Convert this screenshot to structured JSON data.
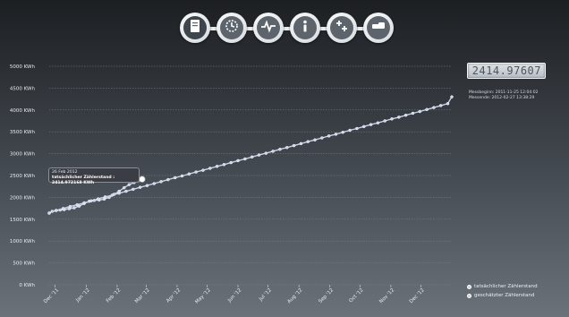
{
  "toolbar": {
    "buttons": [
      {
        "icon": "document-icon"
      },
      {
        "icon": "meter-rotate-icon"
      },
      {
        "icon": "pulse-icon"
      },
      {
        "icon": "info-icon"
      },
      {
        "icon": "sparkle-cross-icon"
      },
      {
        "icon": "device-icon"
      }
    ]
  },
  "counter": {
    "value": "2414.97607"
  },
  "meta": {
    "start": "Messbeginn: 2011-11-25 12:04:02",
    "end": "Messende: 2012-02-27 13:38:29"
  },
  "tooltip": {
    "date": "26 Feb 2012",
    "label": "tatsächlicher Zählerstand",
    "value": "2414.972168 KWh"
  },
  "legend": {
    "items": [
      "tatsächlicher Zählerstand",
      "geschätzter Zählerstand"
    ]
  },
  "colors": {
    "series": "#c9d2e8",
    "background_top": "#1c1f22",
    "background_bottom": "#6b7279"
  },
  "chart_data": {
    "type": "line",
    "title": "",
    "xlabel": "",
    "ylabel": "",
    "y_ticks": [
      "0 KWh",
      "500 KWh",
      "1000 KWh",
      "1500 KWh",
      "2000 KWh",
      "2500 KWh",
      "3000 KWh",
      "3500 KWh",
      "4000 KWh",
      "4500 KWh",
      "5000 KWh"
    ],
    "x_ticks": [
      "Dec '11",
      "Jan '12",
      "Feb '12",
      "Mar '12",
      "Apr '12",
      "May '12",
      "Jun '12",
      "Jul '12",
      "Aug '12",
      "Sep '12",
      "Oct '12",
      "Nov '12",
      "Dec '12"
    ],
    "ylim": [
      0,
      5000
    ],
    "xlim": [
      "2011-11-25",
      "2013-01-01"
    ],
    "grid": true,
    "legend_position": "bottom-right",
    "series": [
      {
        "name": "tatsächlicher Zählerstand",
        "points": [
          [
            "2011-11-25",
            1640
          ],
          [
            "2011-11-28",
            1680
          ],
          [
            "2011-12-02",
            1700
          ],
          [
            "2011-12-06",
            1710
          ],
          [
            "2011-12-10",
            1720
          ],
          [
            "2011-12-15",
            1740
          ],
          [
            "2011-12-20",
            1760
          ],
          [
            "2011-12-25",
            1800
          ],
          [
            "2011-12-30",
            1860
          ],
          [
            "2012-01-04",
            1910
          ],
          [
            "2012-01-09",
            1930
          ],
          [
            "2012-01-14",
            1940
          ],
          [
            "2012-01-19",
            1960
          ],
          [
            "2012-01-24",
            2000
          ],
          [
            "2012-01-29",
            2070
          ],
          [
            "2012-02-03",
            2140
          ],
          [
            "2012-02-08",
            2220
          ],
          [
            "2012-02-13",
            2290
          ],
          [
            "2012-02-18",
            2340
          ],
          [
            "2012-02-22",
            2380
          ],
          [
            "2012-02-26",
            2415
          ]
        ]
      },
      {
        "name": "geschätzter Zählerstand",
        "points": [
          [
            "2011-11-25",
            1640
          ],
          [
            "2011-12-02",
            1700
          ],
          [
            "2011-12-09",
            1745
          ],
          [
            "2011-12-16",
            1790
          ],
          [
            "2011-12-23",
            1830
          ],
          [
            "2011-12-30",
            1875
          ],
          [
            "2012-01-06",
            1920
          ],
          [
            "2012-01-13",
            1965
          ],
          [
            "2012-01-20",
            2010
          ],
          [
            "2012-01-27",
            2050
          ],
          [
            "2012-02-03",
            2095
          ],
          [
            "2012-02-10",
            2140
          ],
          [
            "2012-02-17",
            2185
          ],
          [
            "2012-02-24",
            2230
          ],
          [
            "2012-03-02",
            2270
          ],
          [
            "2012-03-09",
            2315
          ],
          [
            "2012-03-16",
            2360
          ],
          [
            "2012-03-23",
            2405
          ],
          [
            "2012-03-30",
            2450
          ],
          [
            "2012-04-06",
            2490
          ],
          [
            "2012-04-13",
            2535
          ],
          [
            "2012-04-20",
            2580
          ],
          [
            "2012-04-27",
            2620
          ],
          [
            "2012-05-04",
            2665
          ],
          [
            "2012-05-11",
            2710
          ],
          [
            "2012-05-18",
            2750
          ],
          [
            "2012-05-25",
            2795
          ],
          [
            "2012-06-01",
            2840
          ],
          [
            "2012-06-08",
            2880
          ],
          [
            "2012-06-15",
            2925
          ],
          [
            "2012-06-22",
            2970
          ],
          [
            "2012-06-29",
            3010
          ],
          [
            "2012-07-06",
            3055
          ],
          [
            "2012-07-13",
            3100
          ],
          [
            "2012-07-20",
            3140
          ],
          [
            "2012-07-27",
            3185
          ],
          [
            "2012-08-03",
            3230
          ],
          [
            "2012-08-10",
            3275
          ],
          [
            "2012-08-17",
            3315
          ],
          [
            "2012-08-24",
            3360
          ],
          [
            "2012-08-31",
            3405
          ],
          [
            "2012-09-07",
            3445
          ],
          [
            "2012-09-14",
            3490
          ],
          [
            "2012-09-21",
            3535
          ],
          [
            "2012-09-28",
            3575
          ],
          [
            "2012-10-05",
            3620
          ],
          [
            "2012-10-12",
            3665
          ],
          [
            "2012-10-19",
            3705
          ],
          [
            "2012-10-26",
            3750
          ],
          [
            "2012-11-02",
            3795
          ],
          [
            "2012-11-09",
            3835
          ],
          [
            "2012-11-16",
            3880
          ],
          [
            "2012-11-23",
            3925
          ],
          [
            "2012-11-30",
            3965
          ],
          [
            "2012-12-07",
            4010
          ],
          [
            "2012-12-14",
            4055
          ],
          [
            "2012-12-21",
            4100
          ],
          [
            "2012-12-28",
            4145
          ],
          [
            "2013-01-01",
            4300
          ]
        ]
      }
    ]
  }
}
